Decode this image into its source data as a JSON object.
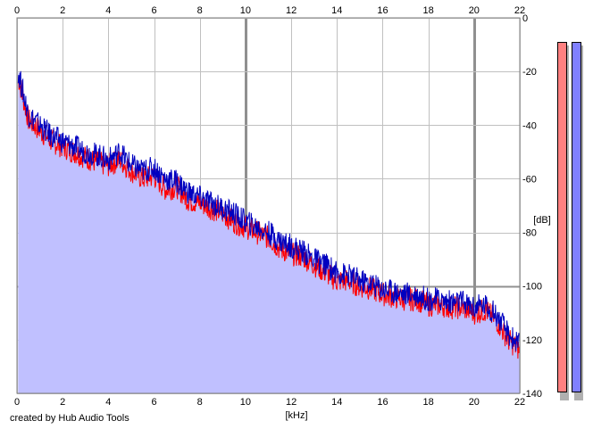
{
  "chart_data": {
    "type": "line",
    "xlabel": "[kHz]",
    "ylabel": "[dB]",
    "xlim": [
      0,
      22
    ],
    "ylim": [
      -140,
      0
    ],
    "x_ticks": [
      0,
      2,
      4,
      6,
      8,
      10,
      12,
      14,
      16,
      18,
      20,
      22
    ],
    "y_ticks": [
      0,
      -20,
      -40,
      -60,
      -80,
      -100,
      -120,
      -140
    ],
    "grid": true,
    "fill_color": "#c0c0ff",
    "series": [
      {
        "color": "#ff0000",
        "x": [
          0.05,
          0.5,
          1,
          1.5,
          2,
          2.5,
          3,
          3.5,
          4,
          4.5,
          5,
          5.5,
          6,
          6.5,
          7,
          7.5,
          8,
          8.5,
          9,
          9.5,
          10,
          10.5,
          11,
          11.5,
          12,
          12.5,
          13,
          13.5,
          14,
          14.5,
          15,
          15.5,
          16,
          16.5,
          17,
          17.5,
          18,
          18.5,
          19,
          19.5,
          20,
          20.5,
          21,
          21.5,
          22
        ],
        "y": [
          -22,
          -38,
          -42,
          -46,
          -48,
          -50,
          -52,
          -54,
          -55,
          -53,
          -57,
          -60,
          -59,
          -64,
          -63,
          -68,
          -69,
          -71,
          -73,
          -76,
          -78,
          -80,
          -82,
          -86,
          -88,
          -89,
          -92,
          -95,
          -98,
          -98,
          -100,
          -101,
          -103,
          -104,
          -105,
          -105,
          -107,
          -107,
          -108,
          -108,
          -110,
          -109,
          -113,
          -120,
          -124
        ]
      },
      {
        "color": "#0000c0",
        "x": [
          0.05,
          0.5,
          1,
          1.5,
          2,
          2.5,
          3,
          3.5,
          4,
          4.5,
          5,
          5.5,
          6,
          6.5,
          7,
          7.5,
          8,
          8.5,
          9,
          9.5,
          10,
          10.5,
          11,
          11.5,
          12,
          12.5,
          13,
          13.5,
          14,
          14.5,
          15,
          15.5,
          16,
          16.5,
          17,
          17.5,
          18,
          18.5,
          19,
          19.5,
          20,
          20.5,
          21,
          21.5,
          22
        ],
        "y": [
          -20,
          -36,
          -40,
          -44,
          -46,
          -48,
          -50,
          -51,
          -53,
          -50,
          -55,
          -57,
          -56,
          -60,
          -61,
          -65,
          -67,
          -69,
          -71,
          -73,
          -76,
          -78,
          -80,
          -83,
          -85,
          -87,
          -90,
          -92,
          -95,
          -96,
          -98,
          -99,
          -101,
          -102,
          -103,
          -103,
          -105,
          -105,
          -106,
          -106,
          -108,
          -107,
          -111,
          -118,
          -122
        ]
      }
    ],
    "meters": [
      {
        "color": "#ff8080"
      },
      {
        "color": "#8080ff"
      }
    ]
  },
  "footer": {
    "credit": "created by Hub Audio Tools"
  }
}
